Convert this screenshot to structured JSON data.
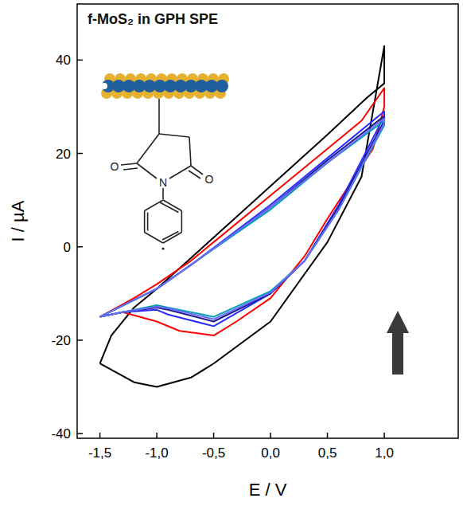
{
  "chart_data": {
    "type": "line",
    "x_label": "E / V",
    "y_label": "I / µA",
    "annotations": [
      {
        "text": "f-MoS₂ in GPH SPE"
      },
      {
        "text": "O"
      },
      {
        "text": "N"
      },
      {
        "text": "O"
      }
    ],
    "xlim": [
      -1.7,
      1.65
    ],
    "ylim": [
      -41,
      52
    ],
    "xticks": [
      {
        "value": -1.5,
        "label": "-1,5"
      },
      {
        "value": -1.0,
        "label": "-1,0"
      },
      {
        "value": -0.5,
        "label": "-0,5"
      },
      {
        "value": 0.0,
        "label": "0,0"
      },
      {
        "value": 0.5,
        "label": "0,5"
      },
      {
        "value": 1.0,
        "label": "1,0"
      }
    ],
    "yticks": [
      -40,
      -20,
      0,
      20,
      40
    ],
    "grid": false,
    "series": [
      {
        "color": "#000000",
        "x": [
          -1.5,
          -1.4,
          -1.2,
          -1.0,
          -0.5,
          0.0,
          0.5,
          0.85,
          1.0,
          1.0,
          0.8,
          0.5,
          0.0,
          -0.5,
          -0.7,
          -1.0,
          -1.2,
          -1.5
        ],
        "values": [
          -25,
          -19,
          -13,
          -9,
          2,
          13,
          24,
          32,
          35,
          43,
          15,
          1,
          -16,
          -25,
          -28,
          -30,
          -29,
          -25
        ]
      },
      {
        "color": "#ff0000",
        "x": [
          -1.5,
          -1.2,
          -1.0,
          -0.7,
          -0.5,
          0.0,
          0.5,
          0.8,
          1.0,
          1.0,
          0.9,
          0.5,
          0.3,
          0.0,
          -0.3,
          -0.5,
          -0.8,
          -1.0,
          -1.3,
          -1.5
        ],
        "values": [
          -15,
          -11,
          -8,
          -3,
          1,
          11,
          21,
          27,
          34,
          30,
          21,
          6,
          -2,
          -11,
          -16,
          -19,
          -18,
          -16,
          -14,
          -15
        ]
      },
      {
        "color": "#2b2bff",
        "x": [
          -1.5,
          -1.0,
          -0.65,
          0.0,
          0.5,
          1.0,
          1.0,
          0.6,
          0.3,
          0.0,
          -0.5,
          -0.9,
          -1.0,
          -1.3,
          -1.5
        ],
        "values": [
          -15,
          -9,
          -3,
          9,
          19,
          29,
          28,
          9,
          -3,
          -10,
          -17,
          -14.5,
          -13.5,
          -14,
          -15
        ]
      },
      {
        "color": "#1a1a8c",
        "x": [
          -1.5,
          -1.0,
          -0.65,
          0.0,
          0.5,
          1.0,
          1.0,
          0.6,
          0.3,
          0.0,
          -0.5,
          -0.9,
          -1.0,
          -1.3,
          -1.5
        ],
        "values": [
          -15,
          -9,
          -3,
          8.5,
          18.5,
          28,
          27,
          8.5,
          -3,
          -10,
          -16,
          -13.5,
          -13,
          -14,
          -15
        ]
      },
      {
        "color": "#00a0b0",
        "x": [
          -1.5,
          -1.0,
          -0.65,
          0.0,
          0.5,
          1.0,
          1.0,
          0.6,
          0.3,
          0.0,
          -0.5,
          -0.9,
          -1.0,
          -1.3,
          -1.5
        ],
        "values": [
          -15,
          -9,
          -3,
          8,
          18,
          27,
          26,
          8,
          -3,
          -9.5,
          -15,
          -13,
          -12.5,
          -14,
          -15
        ]
      },
      {
        "color": "#6a6aff",
        "x": [
          -1.5,
          -1.0,
          -0.65,
          0.0,
          0.5,
          1.0,
          1.0,
          0.6,
          0.3,
          0.0,
          -0.5,
          -0.9,
          -1.0,
          -1.3,
          -1.5
        ],
        "values": [
          -15,
          -9,
          -3,
          8.5,
          18,
          27.5,
          26.5,
          8,
          -3,
          -9.8,
          -15.5,
          -13.2,
          -12.8,
          -14,
          -15
        ]
      }
    ]
  }
}
